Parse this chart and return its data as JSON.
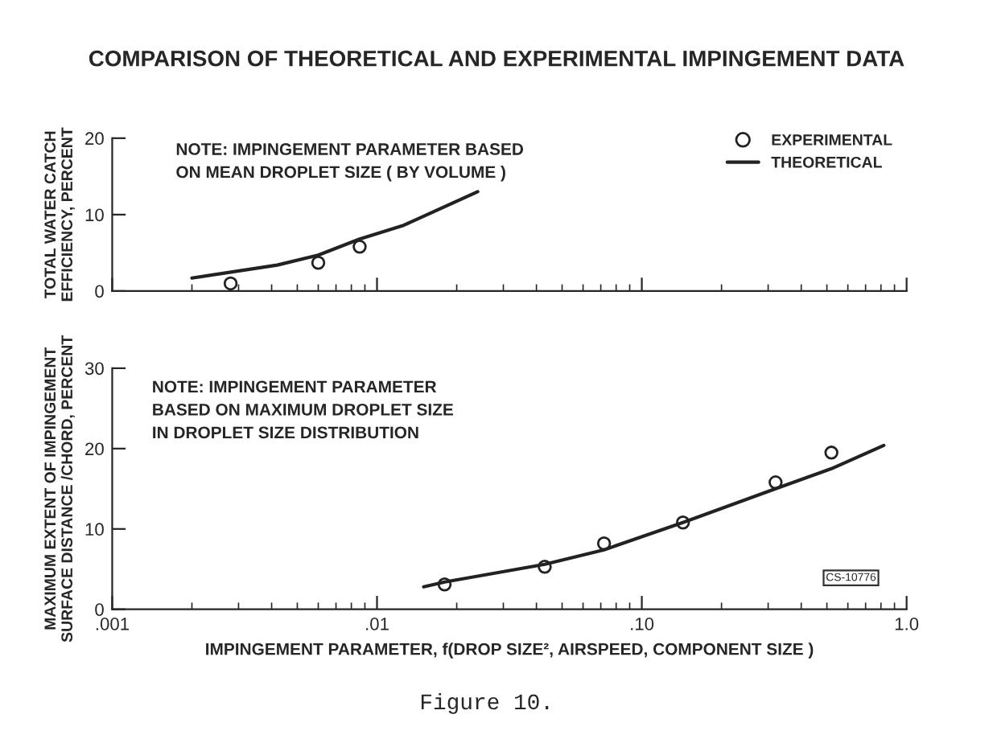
{
  "chart_data": [
    {
      "type": "scatter",
      "title": "COMPARISON OF THEORETICAL AND EXPERIMENTAL IMPINGEMENT DATA",
      "ylabel": "TOTAL WATER CATCH\nEFFICIENCY, PERCENT",
      "log": "x",
      "xlim": [
        0.001,
        1.0
      ],
      "xticks": [
        {
          "value": 0.001,
          "label": null
        },
        {
          "value": 0.01,
          "label": null
        },
        {
          "value": 0.1,
          "label": null
        },
        {
          "value": 1.0,
          "label": null
        }
      ],
      "ylim": [
        0,
        20
      ],
      "yticks": [
        0,
        10,
        20
      ],
      "tick_labels": "y",
      "legend": "top right",
      "grid": false,
      "annotations": [
        "NOTE: IMPINGEMENT PARAMETER BASED\nON MEAN DROPLET SIZE ( BY VOLUME )"
      ],
      "series": [
        {
          "name": "EXPERIMENTAL",
          "marker": "circle",
          "color": "#222222",
          "x": [
            0.0028,
            0.006,
            0.0086
          ],
          "values": [
            1.0,
            3.7,
            5.8
          ]
        },
        {
          "name": "THEORETICAL",
          "type": "line",
          "marker": "none",
          "line_style": "solid",
          "color": "#222222",
          "x": [
            0.002,
            0.0042,
            0.006,
            0.0086,
            0.0126,
            0.024
          ],
          "values": [
            1.7,
            3.4,
            4.7,
            6.8,
            8.6,
            13.0
          ]
        }
      ]
    },
    {
      "type": "scatter",
      "xlabel": "IMPINGEMENT PARAMETER, f(DROP SIZE², AIRSPEED, COMPONENT SIZE )",
      "ylabel": "MAXIMUM EXTENT OF IMPINGEMENT\nSURFACE DISTANCE /CHORD, PERCENT",
      "log": "x",
      "xlim": [
        0.001,
        1.0
      ],
      "xticks": [
        {
          "value": 0.001,
          "label": ".001"
        },
        {
          "value": 0.01,
          "label": ".01"
        },
        {
          "value": 0.1,
          "label": ".10"
        },
        {
          "value": 1.0,
          "label": "1.0"
        }
      ],
      "ylim": [
        0,
        30
      ],
      "yticks": [
        0,
        10,
        20,
        30
      ],
      "grid": false,
      "annotations": [
        "NOTE: IMPINGEMENT PARAMETER\nBASED ON MAXIMUM DROPLET SIZE\nIN DROPLET SIZE DISTRIBUTION",
        "CS-10776",
        "Figure 10."
      ],
      "series": [
        {
          "marker": "circle",
          "color": "#222222",
          "x": [
            0.018,
            0.043,
            0.072,
            0.143,
            0.32,
            0.52
          ],
          "values": [
            3.1,
            5.3,
            8.2,
            10.8,
            15.8,
            19.5
          ]
        },
        {
          "type": "line",
          "marker": "none",
          "line_style": "solid",
          "color": "#222222",
          "x": [
            0.015,
            0.018,
            0.043,
            0.072,
            0.143,
            0.32,
            0.52,
            0.82
          ],
          "values": [
            2.8,
            3.4,
            5.6,
            7.4,
            10.8,
            15.0,
            17.5,
            20.4
          ]
        }
      ]
    }
  ]
}
